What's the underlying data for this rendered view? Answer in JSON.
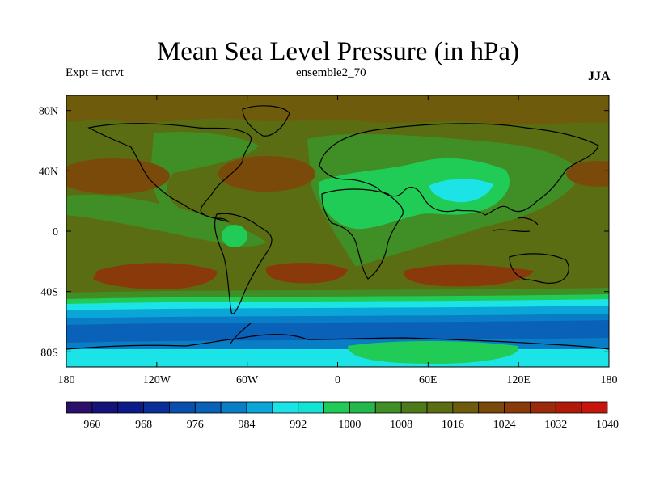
{
  "title": "Mean Sea Level Pressure (in hPa)",
  "left_label": "Expt = tcrvt",
  "center_label": "ensemble2_70",
  "right_label": "JJA",
  "axes": {
    "lon_range": [
      -180,
      180
    ],
    "lat_range": [
      -90,
      90
    ],
    "x_ticks": [
      {
        "value": -180,
        "label": "180"
      },
      {
        "value": -120,
        "label": "120W"
      },
      {
        "value": -60,
        "label": "60W"
      },
      {
        "value": 0,
        "label": "0"
      },
      {
        "value": 60,
        "label": "60E"
      },
      {
        "value": 120,
        "label": "120E"
      },
      {
        "value": 180,
        "label": "180"
      }
    ],
    "y_ticks": [
      {
        "value": 80,
        "label": "80N"
      },
      {
        "value": 40,
        "label": "40N"
      },
      {
        "value": 0,
        "label": "0"
      },
      {
        "value": -40,
        "label": "40S"
      },
      {
        "value": -80,
        "label": "80S"
      }
    ]
  },
  "colorbar": {
    "colors": [
      "#2a0f6b",
      "#13137a",
      "#0b1a8a",
      "#0a2f9a",
      "#0a4fae",
      "#0a62b8",
      "#0a7dc7",
      "#0aa6d8",
      "#1ce3e6",
      "#12e3d4",
      "#20cc55",
      "#22b84c",
      "#3f8f26",
      "#4f7a1b",
      "#5a6d12",
      "#6e5c0c",
      "#7a4a0b",
      "#8a3a0a",
      "#9c2a0a",
      "#b01a08",
      "#c8140a"
    ],
    "labels": [
      "960",
      "968",
      "976",
      "984",
      "992",
      "1000",
      "1008",
      "1016",
      "1024",
      "1032",
      "1040"
    ]
  },
  "field": {
    "background_color": "#5a6d12",
    "regions": [
      {
        "name": "arctic-high",
        "color": "#6e5c0c"
      },
      {
        "name": "north-pacific-high",
        "color": "#7a4a0b"
      },
      {
        "name": "azores-high",
        "color": "#7a4a0b"
      },
      {
        "name": "south-pacific-high",
        "color": "#8a3a0a"
      },
      {
        "name": "south-atlantic-high",
        "color": "#8a3a0a"
      },
      {
        "name": "indian-ocean-high",
        "color": "#8a3a0a"
      },
      {
        "name": "eurasia-low",
        "color": "#3f8f26"
      },
      {
        "name": "africa-asia-low",
        "color": "#20cc55"
      },
      {
        "name": "asian-monsoon-low",
        "color": "#1ce3e6"
      },
      {
        "name": "amazon-low",
        "color": "#20cc55"
      },
      {
        "name": "southern-ocean-belt",
        "color": "#0a62b8"
      },
      {
        "name": "antarctic-interior",
        "color": "#20cc55"
      }
    ]
  }
}
